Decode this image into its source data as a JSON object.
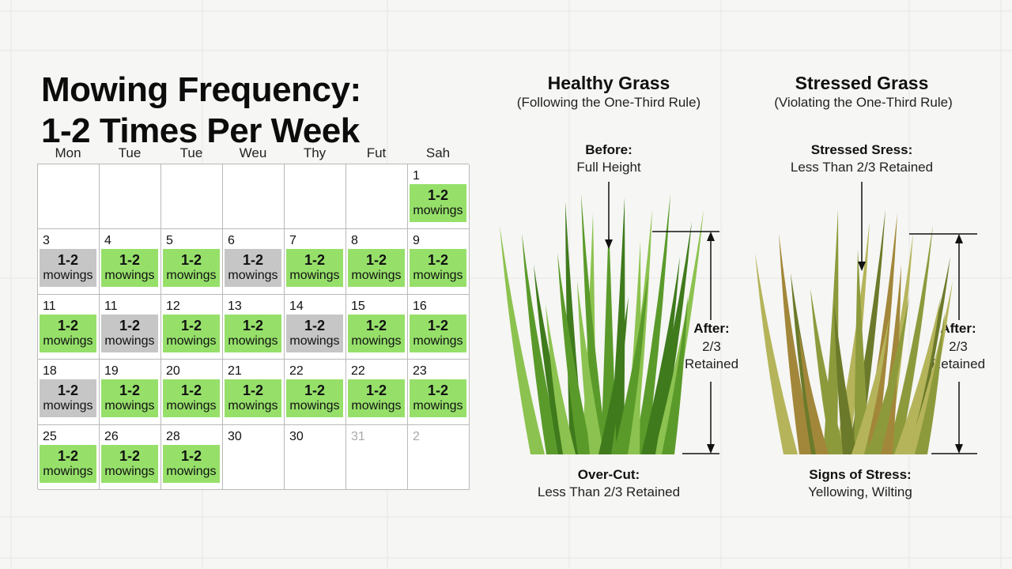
{
  "title": {
    "line1": "Mowing Frequency:",
    "line2": "1-2 Times Per Week"
  },
  "calendar": {
    "day_headers": [
      "Mon",
      "Tue",
      "Tue",
      "Weu",
      "Thy",
      "Fut",
      "Sah"
    ],
    "badge_count": "1-2",
    "badge_unit": "mowings",
    "colors": {
      "mow_day": "#96e06a",
      "rest_day": "#c6c6c6"
    },
    "weeks": [
      [
        {
          "date": "",
          "badge": "none"
        },
        {
          "date": "",
          "badge": "none"
        },
        {
          "date": "",
          "badge": "none"
        },
        {
          "date": "",
          "badge": "none"
        },
        {
          "date": "",
          "badge": "none"
        },
        {
          "date": "",
          "badge": "none"
        },
        {
          "date": "1",
          "badge": "green"
        }
      ],
      [
        {
          "date": "3",
          "badge": "gray"
        },
        {
          "date": "4",
          "badge": "green"
        },
        {
          "date": "5",
          "badge": "green"
        },
        {
          "date": "6",
          "badge": "gray"
        },
        {
          "date": "7",
          "badge": "green"
        },
        {
          "date": "8",
          "badge": "green"
        },
        {
          "date": "9",
          "badge": "green"
        }
      ],
      [
        {
          "date": "11",
          "badge": "green"
        },
        {
          "date": "11",
          "badge": "gray"
        },
        {
          "date": "12",
          "badge": "green"
        },
        {
          "date": "13",
          "badge": "green"
        },
        {
          "date": "14",
          "badge": "gray"
        },
        {
          "date": "15",
          "badge": "green"
        },
        {
          "date": "16",
          "badge": "green"
        }
      ],
      [
        {
          "date": "18",
          "badge": "gray"
        },
        {
          "date": "19",
          "badge": "green"
        },
        {
          "date": "20",
          "badge": "green"
        },
        {
          "date": "21",
          "badge": "green"
        },
        {
          "date": "22",
          "badge": "green"
        },
        {
          "date": "22",
          "badge": "green"
        },
        {
          "date": "23",
          "badge": "green"
        }
      ],
      [
        {
          "date": "25",
          "badge": "green"
        },
        {
          "date": "26",
          "badge": "green"
        },
        {
          "date": "28",
          "badge": "green"
        },
        {
          "date": "30",
          "badge": "none"
        },
        {
          "date": "30",
          "badge": "none"
        },
        {
          "date": "31",
          "badge": "none",
          "muted": true
        },
        {
          "date": "2",
          "badge": "none",
          "muted": true
        }
      ]
    ]
  },
  "healthy": {
    "title": "Healthy Grass",
    "subtitle": "(Following the One-Third Rule)",
    "before_label": "Before:",
    "before_value": "Full Height",
    "after_label": "After:",
    "after_value1": "2/3",
    "after_value2": "Retained",
    "bottom_label": "Over-Cut:",
    "bottom_value": "Less Than 2/3 Retained",
    "colors": {
      "dark": "#3f7a1c",
      "mid": "#5a9a2a",
      "light": "#8cc24f"
    }
  },
  "stressed": {
    "title": "Stressed Grass",
    "subtitle": "(Violating the One-Third Rule)",
    "top_label": "Stressed Sress:",
    "top_value": "Less Than 2/3 Retained",
    "after_label": "After:",
    "after_value1": "2/3",
    "after_value2": "Retained",
    "bottom_label": "Signs of Stress:",
    "bottom_value": "Yellowing, Wilting",
    "colors": {
      "dark": "#6b7a2a",
      "mid": "#8d9a3c",
      "light": "#b5b45a",
      "brown": "#a2873a"
    }
  }
}
